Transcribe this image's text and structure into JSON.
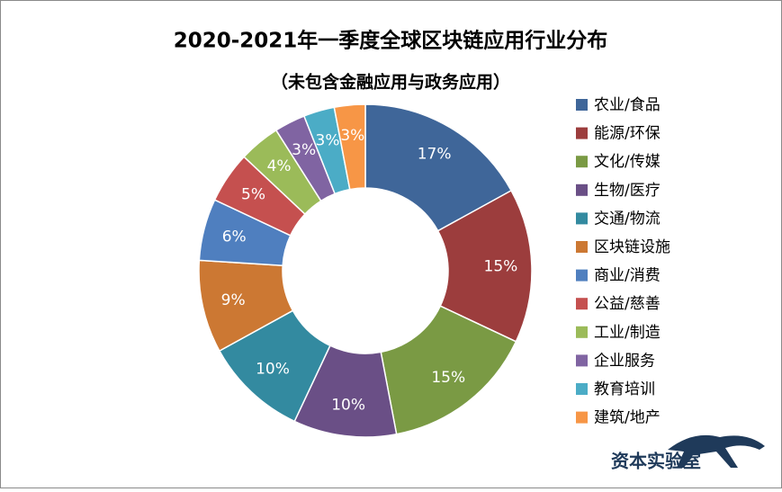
{
  "chart_data": {
    "type": "donut",
    "title": "2020-2021年一季度全球区块链应用行业分布",
    "subtitle": "（未包含金融应用与政务应用）",
    "categories": [
      "农业/食品",
      "能源/环保",
      "文化/传媒",
      "生物/医疗",
      "交通/物流",
      "区块链设施",
      "商业/消费",
      "公益/慈善",
      "工业/制造",
      "企业服务",
      "教育培训",
      "建筑/地产"
    ],
    "values": [
      17,
      15,
      15,
      10,
      10,
      9,
      6,
      5,
      4,
      3,
      3,
      3
    ],
    "value_labels": [
      "17%",
      "15%",
      "15%",
      "10%",
      "10%",
      "9%",
      "6%",
      "5%",
      "4%",
      "3%",
      "3%",
      "3%"
    ],
    "colors": [
      "#3f6699",
      "#9c3d3d",
      "#7a9a44",
      "#6a4f86",
      "#338aa0",
      "#cc7833",
      "#4f7fbf",
      "#c5504f",
      "#9bbb59",
      "#8064a2",
      "#4bacc6",
      "#f79646"
    ],
    "legend": "right",
    "watermark": "资本实验室"
  }
}
